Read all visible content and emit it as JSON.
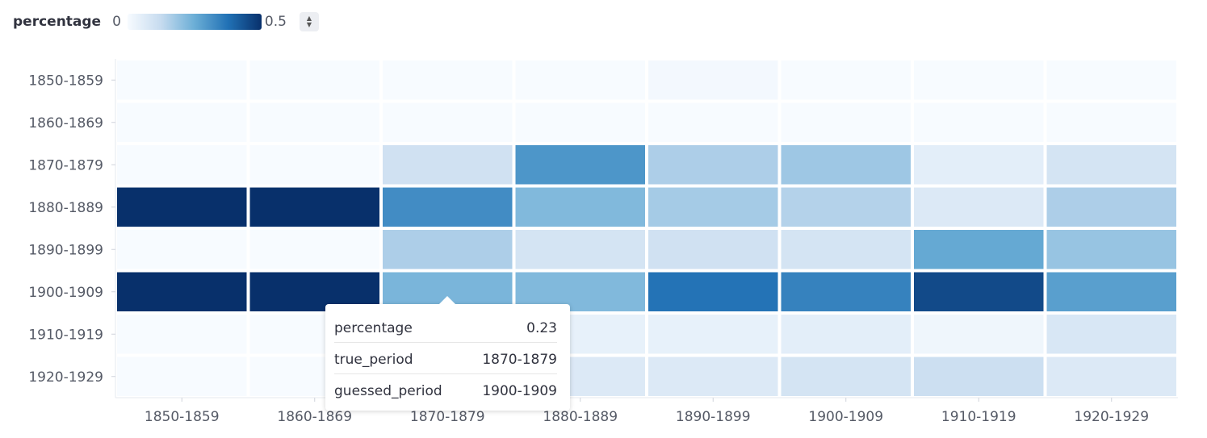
{
  "legend": {
    "title": "percentage",
    "min_label": "0",
    "max_label": "0.5",
    "scheme": [
      "#f7fbff",
      "#c6dbef",
      "#6baed6",
      "#2171b5",
      "#08306b"
    ]
  },
  "chart_data": {
    "type": "heatmap",
    "x_categories": [
      "1850-1859",
      "1860-1869",
      "1870-1879",
      "1880-1889",
      "1890-1899",
      "1900-1909",
      "1910-1919",
      "1920-1929"
    ],
    "y_categories": [
      "1850-1859",
      "1860-1869",
      "1870-1879",
      "1880-1889",
      "1890-1899",
      "1900-1909",
      "1910-1919",
      "1920-1929"
    ],
    "value_range": [
      0,
      0.5
    ],
    "values": [
      [
        0,
        0,
        0,
        0,
        0.01,
        0,
        0,
        0
      ],
      [
        0,
        0,
        0,
        0,
        0,
        0,
        0,
        0
      ],
      [
        0,
        0,
        0.1,
        0.3,
        0.16,
        0.18,
        0.05,
        0.09
      ],
      [
        0.5,
        0.5,
        0.32,
        0.22,
        0.17,
        0.15,
        0.07,
        0.16
      ],
      [
        0,
        0,
        0.16,
        0.09,
        0.1,
        0.09,
        0.26,
        0.19
      ],
      [
        0.5,
        0.5,
        0.23,
        0.22,
        0.37,
        0.34,
        0.45,
        0.28
      ],
      [
        0,
        0,
        0,
        0.04,
        0.04,
        0.05,
        0.02,
        0.08
      ],
      [
        0,
        0,
        0.05,
        0.07,
        0.07,
        0.09,
        0.11,
        0.07
      ]
    ],
    "grid": false
  },
  "tooltip": {
    "rows": [
      {
        "key": "percentage",
        "value": "0.23"
      },
      {
        "key": "true_period",
        "value": "1870-1879"
      },
      {
        "key": "guessed_period",
        "value": "1900-1909"
      }
    ]
  }
}
